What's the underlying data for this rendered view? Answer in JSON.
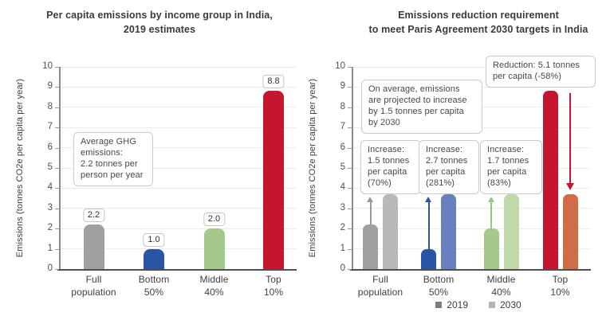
{
  "figure": {
    "background": "#ffffff"
  },
  "legend": {
    "entries": [
      {
        "label": "2019",
        "color": "#7c7c7c"
      },
      {
        "label": "2030",
        "color": "#b4b4b4"
      }
    ]
  },
  "chart_data": [
    {
      "type": "bar",
      "title": "Per capita emissions by income group in India,\n2019 estimates",
      "ylabel": "Emissions (tonnes CO2e per capita per year)",
      "ylim": [
        0,
        10
      ],
      "yticks": [
        0,
        1,
        2,
        3,
        4,
        5,
        6,
        7,
        8,
        9,
        10
      ],
      "grid": true,
      "categories": [
        "Full population",
        "Bottom 50%",
        "Middle 40%",
        "Top 10%"
      ],
      "category_labels": [
        "Full\npopulation",
        "Bottom\n50%",
        "Middle\n40%",
        "Top\n10%"
      ],
      "values": [
        2.2,
        1.0,
        2.0,
        8.8
      ],
      "data_labels": [
        "2.2",
        "1.0",
        "2.0",
        "8.8"
      ],
      "bar_colors": [
        "#a0a0a0",
        "#2a54a6",
        "#a3c98c",
        "#c4162e"
      ],
      "annotations": [
        {
          "name": "average-ghg",
          "text": "Average GHG\nemissions:\n2.2 tonnes per\nperson per year"
        }
      ]
    },
    {
      "type": "bar",
      "title": "Emissions reduction requirement\nto meet Paris Agreement 2030 targets in India",
      "ylabel": "Emissions (tonnes CO2e per capita per year)",
      "ylim": [
        0,
        10
      ],
      "yticks": [
        0,
        1,
        2,
        3,
        4,
        5,
        6,
        7,
        8,
        9,
        10
      ],
      "grid": true,
      "legend_position": "bottom",
      "categories": [
        "Full population",
        "Bottom 50%",
        "Middle 40%",
        "Top 10%"
      ],
      "category_labels": [
        "Full\npopulation",
        "Bottom\n50%",
        "Middle\n40%",
        "Top\n10%"
      ],
      "series": [
        {
          "name": "2019",
          "values": [
            2.2,
            1.0,
            2.0,
            8.8
          ],
          "colors": [
            "#a0a0a0",
            "#2a54a6",
            "#a3c98c",
            "#c4162e"
          ]
        },
        {
          "name": "2030",
          "values": [
            3.7,
            3.7,
            3.7,
            3.7
          ],
          "colors": [
            "#b9b9b9",
            "#6880bd",
            "#bfd9ab",
            "#d16c49"
          ]
        }
      ],
      "arrows": [
        {
          "group": 0,
          "direction": "up",
          "color": "#9a9a9a"
        },
        {
          "group": 1,
          "direction": "up",
          "color": "#2a54a6"
        },
        {
          "group": 2,
          "direction": "up",
          "color": "#9cc383"
        },
        {
          "group": 3,
          "direction": "down",
          "color": "#c4162e"
        }
      ],
      "annotations": [
        {
          "name": "projection-2030",
          "text": "On average, emissions\nare projected to increase\nby 1.5 tonnes per capita\nby 2030"
        },
        {
          "name": "increase-full-population",
          "text": "Increase:\n1.5 tonnes\nper capita\n(70%)"
        },
        {
          "name": "increase-bottom-50",
          "text": "Increase:\n2.7 tonnes\nper capita\n(281%)"
        },
        {
          "name": "increase-middle-40",
          "text": "Increase:\n1.7 tonnes\nper capita\n(83%)"
        },
        {
          "name": "reduction-top-10",
          "text": "Reduction: 5.1 tonnes\nper capita (-58%)"
        }
      ]
    }
  ]
}
